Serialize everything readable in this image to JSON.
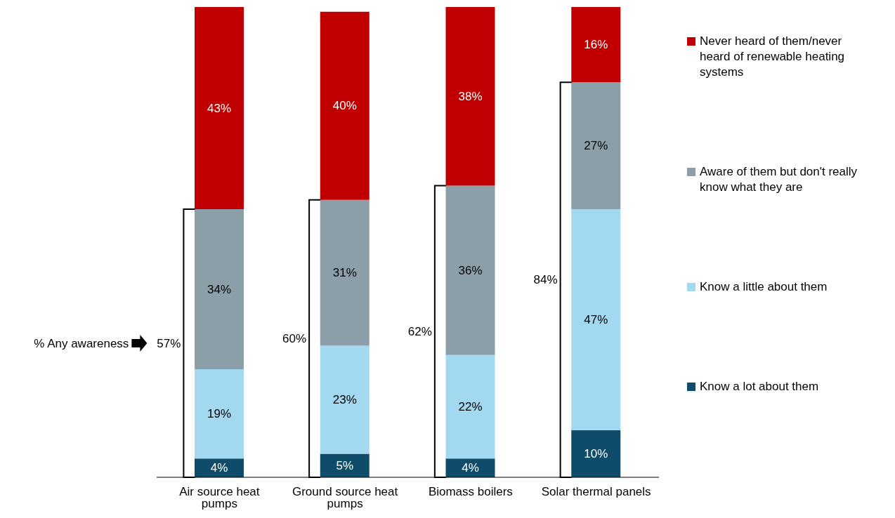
{
  "chart_data": {
    "type": "bar",
    "stacked": true,
    "categories": [
      "Air source heat pumps",
      "Ground source heat pumps",
      "Biomass boilers",
      "Solar thermal panels"
    ],
    "series": [
      {
        "name": "Know a lot about them",
        "color": "#0f4c6a",
        "values": [
          4,
          5,
          4,
          10
        ],
        "value_labels": [
          "4%",
          "5%",
          "4%",
          "10%"
        ]
      },
      {
        "name": "Know a little about them",
        "color": "#a3d8f1",
        "values": [
          19,
          23,
          22,
          47
        ],
        "value_labels": [
          "19%",
          "23%",
          "22%",
          "47%"
        ]
      },
      {
        "name": "Aware of them but don't really know what they are",
        "color": "#8c9fa8",
        "values": [
          34,
          31,
          36,
          27
        ],
        "value_labels": [
          "34%",
          "31%",
          "36%",
          "27%"
        ]
      },
      {
        "name": "Never heard of them/never heard of renewable heating systems",
        "color": "#c00000",
        "values": [
          43,
          40,
          38,
          16
        ],
        "value_labels": [
          "43%",
          "40%",
          "38%",
          "16%"
        ]
      }
    ],
    "legend": "right",
    "annotations": [
      "% Any awareness",
      "57%",
      "60%",
      "62%",
      "84%"
    ]
  }
}
